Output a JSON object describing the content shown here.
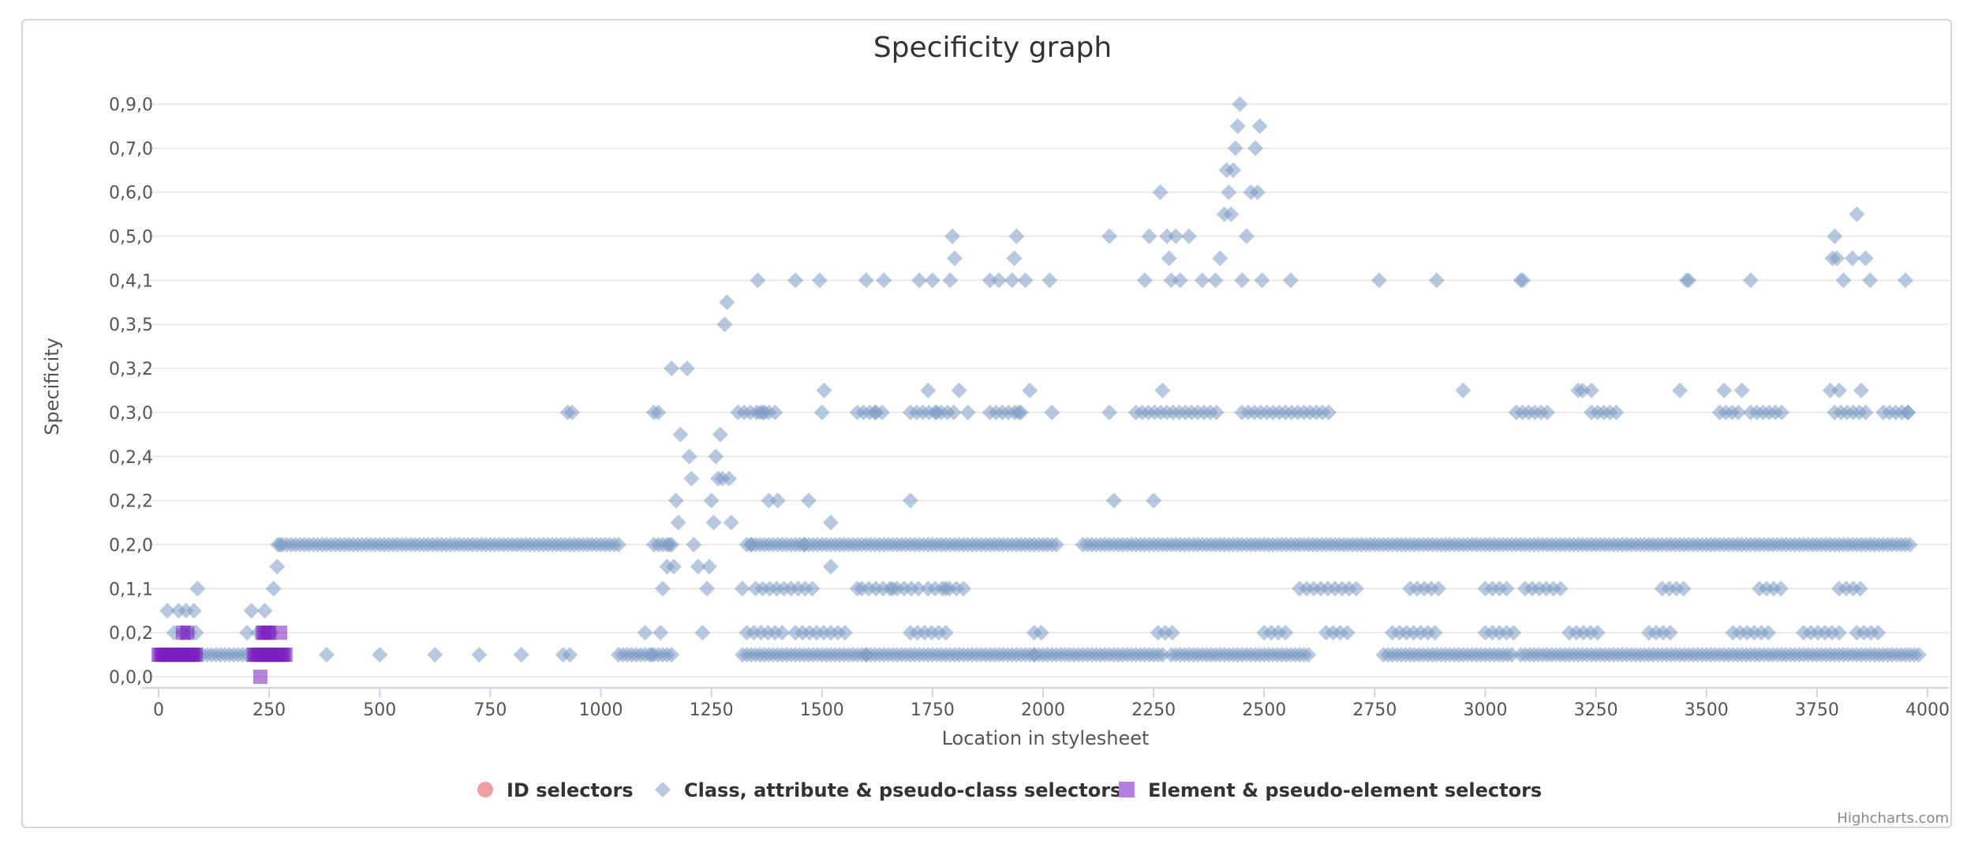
{
  "chart_data": {
    "type": "scatter",
    "title": "Specificity graph",
    "xlabel": "Location in stylesheet",
    "ylabel": "Specificity",
    "xlim": [
      0,
      4000
    ],
    "x_ticks": [
      0,
      250,
      500,
      750,
      1000,
      1250,
      1500,
      1750,
      2000,
      2250,
      2500,
      2750,
      3000,
      3250,
      3500,
      3750,
      4000
    ],
    "y_categories": [
      "0,0,0",
      "0,0,2",
      "0,1,1",
      "0,2,0",
      "0,2,2",
      "0,2,4",
      "0,3,0",
      "0,3,2",
      "0,3,5",
      "0,4,1",
      "0,5,0",
      "0,6,0",
      "0,7,0",
      "0,9,0"
    ],
    "legend_position": "bottom-center",
    "grid": "horizontal",
    "series": [
      {
        "name": "ID selectors",
        "color": "#f0a0a5",
        "marker": "circle",
        "points": []
      },
      {
        "name": "Class, attribute & pseudo-class selectors",
        "color": "#7c9ac4",
        "marker": "diamond",
        "points": [
          [
            10,
            0.5
          ],
          [
            20,
            1.5
          ],
          [
            35,
            1
          ],
          [
            45,
            1.5
          ],
          [
            55,
            1
          ],
          [
            62,
            1.5
          ],
          [
            70,
            1
          ],
          [
            80,
            1.5
          ],
          [
            85,
            1
          ],
          [
            88,
            2
          ],
          [
            200,
            1
          ],
          [
            210,
            1.5
          ],
          [
            225,
            1
          ],
          [
            240,
            1.5
          ],
          [
            255,
            1
          ],
          [
            260,
            2
          ],
          [
            268,
            2.5
          ],
          [
            275,
            3
          ],
          [
            380,
            0.5
          ],
          [
            500,
            0.5
          ],
          [
            625,
            0.5
          ],
          [
            725,
            0.5
          ],
          [
            820,
            0.5
          ],
          [
            915,
            0.5
          ],
          [
            930,
            0.5
          ],
          [
            925,
            6
          ],
          [
            935,
            6
          ],
          [
            1100,
            1
          ],
          [
            1115,
            0.5
          ],
          [
            1120,
            6
          ],
          [
            1130,
            6
          ],
          [
            1135,
            1
          ],
          [
            1140,
            2
          ],
          [
            1150,
            2.5
          ],
          [
            1155,
            3
          ],
          [
            1160,
            7
          ],
          [
            1165,
            2.5
          ],
          [
            1170,
            4
          ],
          [
            1175,
            3.5
          ],
          [
            1180,
            5.5
          ],
          [
            1195,
            7
          ],
          [
            1200,
            5
          ],
          [
            1205,
            4.5
          ],
          [
            1210,
            3
          ],
          [
            1220,
            2.5
          ],
          [
            1230,
            1
          ],
          [
            1240,
            2
          ],
          [
            1245,
            2.5
          ],
          [
            1250,
            4
          ],
          [
            1255,
            3.5
          ],
          [
            1260,
            5
          ],
          [
            1265,
            4.5
          ],
          [
            1270,
            5.5
          ],
          [
            1275,
            4.5
          ],
          [
            1280,
            8
          ],
          [
            1285,
            8.5
          ],
          [
            1290,
            4.5
          ],
          [
            1295,
            3.5
          ],
          [
            1320,
            2
          ],
          [
            1340,
            3
          ],
          [
            1355,
            9
          ],
          [
            1360,
            6
          ],
          [
            1370,
            6
          ],
          [
            1380,
            4
          ],
          [
            1400,
            4
          ],
          [
            1440,
            9
          ],
          [
            1460,
            3
          ],
          [
            1470,
            4
          ],
          [
            1495,
            9
          ],
          [
            1500,
            6
          ],
          [
            1505,
            6.5
          ],
          [
            1520,
            3.5
          ],
          [
            1520,
            2.5
          ],
          [
            1580,
            2
          ],
          [
            1600,
            9
          ],
          [
            1620,
            6
          ],
          [
            1640,
            9
          ],
          [
            1660,
            2
          ],
          [
            1700,
            4
          ],
          [
            1720,
            9
          ],
          [
            1740,
            6.5
          ],
          [
            1750,
            9
          ],
          [
            1760,
            6
          ],
          [
            1780,
            2
          ],
          [
            1790,
            9
          ],
          [
            1795,
            10
          ],
          [
            1800,
            9.5
          ],
          [
            1810,
            6.5
          ],
          [
            1830,
            6
          ],
          [
            1880,
            9
          ],
          [
            1900,
            9
          ],
          [
            1930,
            9
          ],
          [
            1935,
            9.5
          ],
          [
            1940,
            10
          ],
          [
            1945,
            6
          ],
          [
            1960,
            9
          ],
          [
            1970,
            6.5
          ],
          [
            2015,
            9
          ],
          [
            2020,
            6
          ],
          [
            2150,
            10
          ],
          [
            2150,
            6
          ],
          [
            2160,
            4
          ],
          [
            2230,
            9
          ],
          [
            2240,
            10
          ],
          [
            2250,
            4
          ],
          [
            2265,
            11
          ],
          [
            2270,
            6.5
          ],
          [
            2280,
            10
          ],
          [
            2285,
            9.5
          ],
          [
            2290,
            9
          ],
          [
            2300,
            10
          ],
          [
            2310,
            9
          ],
          [
            2330,
            10
          ],
          [
            2360,
            9
          ],
          [
            2390,
            9
          ],
          [
            2400,
            9.5
          ],
          [
            2410,
            10.5
          ],
          [
            2415,
            11.5
          ],
          [
            2420,
            11
          ],
          [
            2425,
            10.5
          ],
          [
            2430,
            11.5
          ],
          [
            2435,
            12
          ],
          [
            2440,
            12.5
          ],
          [
            2445,
            13
          ],
          [
            2450,
            9
          ],
          [
            2460,
            10
          ],
          [
            2470,
            11
          ],
          [
            2480,
            12
          ],
          [
            2485,
            11
          ],
          [
            2490,
            12.5
          ],
          [
            2495,
            9
          ],
          [
            2560,
            9
          ],
          [
            2760,
            9
          ],
          [
            2890,
            9
          ],
          [
            2950,
            6.5
          ],
          [
            3080,
            9
          ],
          [
            3085,
            9
          ],
          [
            3210,
            6.5
          ],
          [
            3220,
            6.5
          ],
          [
            3240,
            6.5
          ],
          [
            3440,
            6.5
          ],
          [
            3455,
            9
          ],
          [
            3460,
            9
          ],
          [
            3540,
            6.5
          ],
          [
            3580,
            6.5
          ],
          [
            3600,
            9
          ],
          [
            3780,
            6.5
          ],
          [
            3785,
            9.5
          ],
          [
            3790,
            10
          ],
          [
            3795,
            9.5
          ],
          [
            3800,
            6.5
          ],
          [
            3810,
            9
          ],
          [
            3830,
            9.5
          ],
          [
            3840,
            10.5
          ],
          [
            3850,
            6.5
          ],
          [
            3860,
            9.5
          ],
          [
            3870,
            9
          ],
          [
            3950,
            9
          ],
          [
            3955,
            6
          ]
        ],
        "bands": [
          {
            "y": 3,
            "ranges": [
              [
                270,
                1040
              ],
              [
                1120,
                1160
              ],
              [
                1330,
                1570
              ],
              [
                1580,
                2030
              ],
              [
                2090,
                2600
              ],
              [
                2610,
                3100
              ],
              [
                3110,
                3960
              ]
            ],
            "step": 10
          },
          {
            "y": 0.5,
            "ranges": [
              [
                60,
                200
              ],
              [
                1040,
                1160
              ],
              [
                1320,
                1600
              ],
              [
                1600,
                1980
              ],
              [
                1980,
                2270
              ],
              [
                2290,
                2600
              ],
              [
                2770,
                3060
              ],
              [
                3080,
                3980
              ]
            ],
            "step": 10
          },
          {
            "y": 6,
            "ranges": [
              [
                1310,
                1400
              ],
              [
                1580,
                1640
              ],
              [
                1700,
                1800
              ],
              [
                1880,
                1960
              ],
              [
                2210,
                2400
              ],
              [
                2450,
                2650
              ],
              [
                3070,
                3140
              ],
              [
                3240,
                3300
              ],
              [
                3530,
                3580
              ],
              [
                3600,
                3680
              ],
              [
                3790,
                3870
              ],
              [
                3900,
                3960
              ]
            ],
            "step": 14
          },
          {
            "y": 2,
            "ranges": [
              [
                1350,
                1480
              ],
              [
                1590,
                1720
              ],
              [
                1740,
                1820
              ],
              [
                2580,
                2720
              ],
              [
                2830,
                2900
              ],
              [
                3000,
                3050
              ],
              [
                3090,
                3180
              ],
              [
                3400,
                3460
              ],
              [
                3620,
                3680
              ],
              [
                3800,
                3860
              ]
            ],
            "step": 16
          },
          {
            "y": 1,
            "ranges": [
              [
                1330,
                1420
              ],
              [
                1440,
                1560
              ],
              [
                1700,
                1780
              ],
              [
                1980,
                2010
              ],
              [
                2260,
                2300
              ],
              [
                2500,
                2560
              ],
              [
                2640,
                2700
              ],
              [
                2790,
                2900
              ],
              [
                3000,
                3070
              ],
              [
                3190,
                3260
              ],
              [
                3370,
                3420
              ],
              [
                3560,
                3640
              ],
              [
                3720,
                3800
              ],
              [
                3840,
                3900
              ]
            ],
            "step": 16
          }
        ]
      },
      {
        "name": "Element & pseudo-element selectors",
        "color": "#7a1fbf",
        "legend_color": "#b57fe0",
        "marker": "square",
        "points": [
          [
            55,
            1
          ],
          [
            65,
            1
          ],
          [
            230,
            0
          ],
          [
            235,
            1
          ],
          [
            240,
            1
          ],
          [
            245,
            1
          ],
          [
            250,
            1
          ],
          [
            275,
            1
          ]
        ],
        "bands": [
          {
            "y": 0.5,
            "ranges": [
              [
                0,
                85
              ],
              [
                215,
                290
              ]
            ],
            "step": 4
          }
        ]
      }
    ],
    "credits": "Highcharts.com"
  }
}
